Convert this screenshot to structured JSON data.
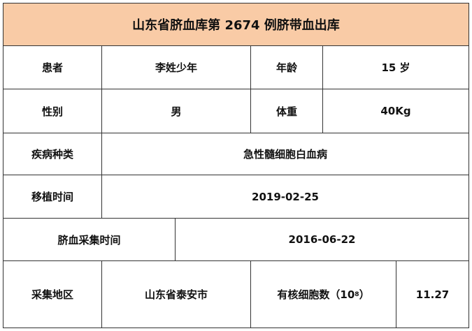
{
  "title": "山东省脐血库第 2674 例脐带血出库",
  "title_bg_color": "#F9CBA6",
  "rows": {
    "patient_label": "患者",
    "patient_value": "李姓少年",
    "age_label": "年龄",
    "age_value": "15 岁",
    "gender_label": "性别",
    "gender_value": "男",
    "weight_label": "体重",
    "weight_value": "40Kg",
    "disease_label": "疾病种类",
    "disease_value": "急性髓细胞白血病",
    "transplant_label": "移植时间",
    "transplant_value": "2019-02-25",
    "collection_time_label": "脐血采集时间",
    "collection_time_value": "2016-06-22",
    "region_label": "采集地区",
    "region_value": "山东省泰安市",
    "cell_count_label": "有核细胞数（10",
    "cell_count_exp": "8",
    "cell_count_close": "）",
    "cell_count_value": "11.27"
  }
}
